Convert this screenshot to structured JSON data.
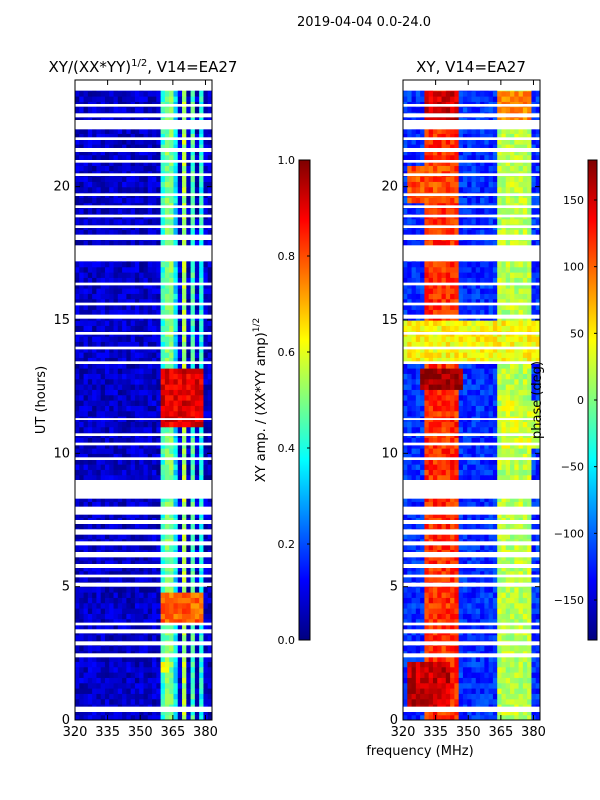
{
  "figure": {
    "suptitle": "2019-04-04 0.0-24.0",
    "shared_xlabel": "frequency (MHz)"
  },
  "colors": {
    "jet_stops": [
      "#00007f",
      "#0000ff",
      "#007fff",
      "#00ffff",
      "#7fff7f",
      "#ffff00",
      "#ff7f00",
      "#ff0000",
      "#7f0000"
    ],
    "flag_row": "#ffffff",
    "axis": "#000000"
  },
  "chart_data": [
    {
      "type": "heatmap",
      "title_prefix": "XY/(XX*YY)",
      "title_exponent": "1/2",
      "title_suffix": ", V14=EA27",
      "xlabel": "",
      "ylabel": "UT (hours)",
      "xlim": [
        320,
        383
      ],
      "ylim": [
        0,
        24
      ],
      "x_ticks": [
        320,
        335,
        350,
        365,
        380
      ],
      "y_ticks": [
        0,
        5,
        10,
        15,
        20
      ],
      "colorbar": {
        "label_prefix": "XY amp. / (XX*YY amp)",
        "label_exponent": "1/2",
        "range": [
          0.0,
          1.0
        ],
        "ticks": [
          "0.0",
          "0.2",
          "0.4",
          "0.6",
          "0.8",
          "1.0"
        ],
        "tick_values": [
          0.0,
          0.2,
          0.4,
          0.6,
          0.8,
          1.0
        ]
      },
      "background_value": 0.07,
      "vertical_bands": [
        {
          "f0": 360,
          "f1": 362,
          "value": 0.42
        },
        {
          "f0": 362,
          "f1": 365,
          "value": 0.5
        },
        {
          "f0": 366,
          "f1": 368,
          "value": 0.35
        },
        {
          "f0": 369,
          "f1": 372,
          "value": 0.55
        },
        {
          "f0": 374,
          "f1": 376,
          "value": 0.45
        },
        {
          "f0": 377,
          "f1": 379,
          "value": 0.4
        }
      ],
      "hot_patches": [
        {
          "t0": 11.0,
          "t1": 13.2,
          "f0": 360,
          "f1": 380,
          "value": 0.9
        },
        {
          "t0": 3.7,
          "t1": 4.8,
          "f0": 360,
          "f1": 380,
          "value": 0.78
        },
        {
          "t0": 1.8,
          "t1": 2.2,
          "f0": 360,
          "f1": 363,
          "value": 0.65
        }
      ]
    },
    {
      "type": "heatmap",
      "title_prefix": "XY, V14=EA27",
      "title_exponent": "",
      "title_suffix": "",
      "xlabel": "frequency (MHz)",
      "ylabel": "",
      "xlim": [
        320,
        383
      ],
      "ylim": [
        0,
        24
      ],
      "x_ticks": [
        320,
        335,
        350,
        365,
        380
      ],
      "y_ticks": [
        0,
        5,
        10,
        15,
        20
      ],
      "colorbar": {
        "label_prefix": "phase (deg)",
        "label_exponent": "",
        "range": [
          -180,
          180
        ],
        "ticks": [
          "−150",
          "−100",
          "−50",
          "0",
          "50",
          "100",
          "150"
        ],
        "tick_values": [
          -150,
          -100,
          -50,
          0,
          50,
          100,
          150
        ]
      },
      "background_value": -120,
      "vertical_bands": [
        {
          "f0": 330,
          "f1": 345,
          "value": 120
        },
        {
          "f0": 363,
          "f1": 380,
          "value": 20
        }
      ],
      "hot_patches": [
        {
          "t0": 13.3,
          "t1": 15.0,
          "f0": 320,
          "f1": 383,
          "value": 45
        },
        {
          "t0": 0.5,
          "t1": 2.2,
          "f0": 322,
          "f1": 342,
          "value": 155
        },
        {
          "t0": 12.5,
          "t1": 13.2,
          "f0": 328,
          "f1": 348,
          "value": 170
        },
        {
          "t0": 19.5,
          "t1": 20.8,
          "f0": 322,
          "f1": 345,
          "value": 110
        },
        {
          "t0": 22.5,
          "t1": 23.6,
          "f0": 330,
          "f1": 345,
          "value": 150
        },
        {
          "t0": 22.5,
          "t1": 23.6,
          "f0": 363,
          "f1": 380,
          "value": 90
        },
        {
          "t0": 10.2,
          "t1": 12.0,
          "f0": 365,
          "f1": 383,
          "value": 30
        }
      ]
    }
  ],
  "flagged_time_ranges": [
    [
      0.3,
      0.5
    ],
    [
      2.35,
      2.5
    ],
    [
      2.8,
      2.95
    ],
    [
      3.25,
      3.4
    ],
    [
      3.55,
      3.65
    ],
    [
      5.0,
      5.15
    ],
    [
      5.35,
      5.45
    ],
    [
      5.7,
      5.85
    ],
    [
      6.1,
      6.3
    ],
    [
      6.55,
      6.7
    ],
    [
      6.95,
      7.15
    ],
    [
      7.35,
      7.5
    ],
    [
      7.7,
      8.0
    ],
    [
      8.3,
      9.0
    ],
    [
      9.75,
      9.85
    ],
    [
      10.3,
      10.4
    ],
    [
      10.65,
      10.75
    ],
    [
      11.25,
      11.32
    ],
    [
      13.35,
      13.45
    ],
    [
      13.9,
      14.0
    ],
    [
      14.45,
      14.55
    ],
    [
      15.05,
      15.2
    ],
    [
      15.55,
      15.65
    ],
    [
      16.3,
      16.4
    ],
    [
      17.2,
      17.8
    ],
    [
      18.0,
      18.2
    ],
    [
      18.45,
      18.55
    ],
    [
      18.85,
      18.95
    ],
    [
      19.2,
      19.3
    ],
    [
      19.65,
      19.75
    ],
    [
      20.4,
      20.5
    ],
    [
      20.9,
      21.0
    ],
    [
      21.3,
      21.45
    ],
    [
      21.75,
      21.85
    ],
    [
      22.15,
      22.5
    ],
    [
      22.6,
      22.75
    ],
    [
      23.0,
      23.1
    ],
    [
      23.6,
      24.0
    ]
  ]
}
